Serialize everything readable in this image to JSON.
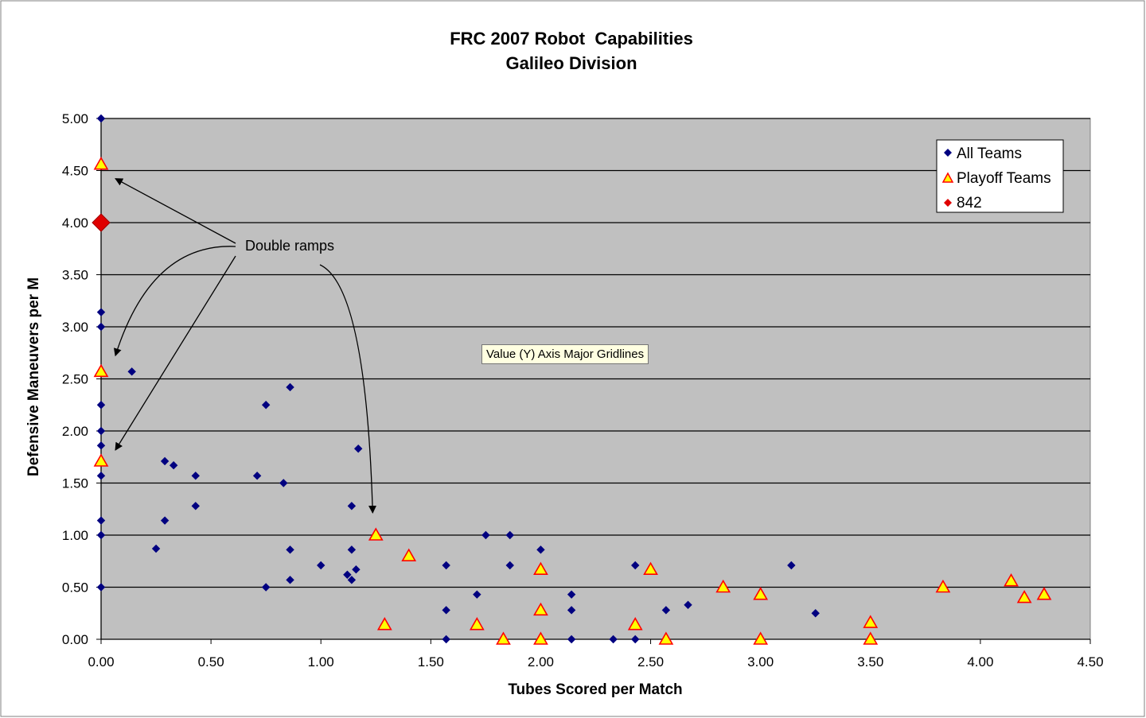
{
  "chart_data": {
    "type": "scatter",
    "title": "FRC 2007 Robot  Capabilities",
    "subtitle": "Galileo Division",
    "xlabel": "Tubes Scored per Match",
    "ylabel": "Defensive Maneuvers per M",
    "xlim": [
      0,
      4.5
    ],
    "ylim": [
      0,
      5
    ],
    "xticks": [
      "0.00",
      "0.50",
      "1.00",
      "1.50",
      "2.00",
      "2.50",
      "3.00",
      "3.50",
      "4.00",
      "4.50"
    ],
    "yticks": [
      "0.00",
      "0.50",
      "1.00",
      "1.50",
      "2.00",
      "2.50",
      "3.00",
      "3.50",
      "4.00",
      "4.50",
      "5.00"
    ],
    "grid": "horizontal major gridlines",
    "legend_position": "top-right",
    "plot_background": "#c0c0c0",
    "series": [
      {
        "name": "All Teams",
        "marker": "diamond",
        "color": "#000080",
        "points": [
          [
            0,
            5.0
          ],
          [
            0,
            3.14
          ],
          [
            0,
            3.0
          ],
          [
            0,
            2.25
          ],
          [
            0,
            2.0
          ],
          [
            0,
            1.86
          ],
          [
            0,
            1.57
          ],
          [
            0,
            1.14
          ],
          [
            0,
            1.0
          ],
          [
            0,
            0.5
          ],
          [
            0.14,
            2.57
          ],
          [
            0.25,
            0.87
          ],
          [
            0.29,
            1.71
          ],
          [
            0.29,
            1.14
          ],
          [
            0.33,
            1.67
          ],
          [
            0.43,
            1.57
          ],
          [
            0.43,
            1.28
          ],
          [
            0.71,
            1.57
          ],
          [
            0.75,
            2.25
          ],
          [
            0.75,
            0.5
          ],
          [
            0.83,
            1.5
          ],
          [
            0.86,
            2.42
          ],
          [
            0.86,
            0.86
          ],
          [
            0.86,
            0.57
          ],
          [
            1.0,
            0.71
          ],
          [
            1.12,
            0.62
          ],
          [
            1.14,
            1.28
          ],
          [
            1.14,
            0.86
          ],
          [
            1.14,
            0.57
          ],
          [
            1.16,
            0.67
          ],
          [
            1.17,
            1.83
          ],
          [
            1.57,
            0.71
          ],
          [
            1.57,
            0.28
          ],
          [
            1.57,
            0.0
          ],
          [
            1.71,
            0.43
          ],
          [
            1.75,
            1.0
          ],
          [
            1.86,
            1.0
          ],
          [
            1.86,
            0.71
          ],
          [
            2.0,
            0.86
          ],
          [
            2.14,
            0.43
          ],
          [
            2.14,
            0.28
          ],
          [
            2.14,
            0.0
          ],
          [
            2.33,
            0.0
          ],
          [
            2.43,
            0.71
          ],
          [
            2.43,
            0.0
          ],
          [
            2.57,
            0.28
          ],
          [
            2.67,
            0.33
          ],
          [
            3.14,
            0.71
          ],
          [
            3.25,
            0.25
          ]
        ]
      },
      {
        "name": "Playoff Teams",
        "marker": "triangle",
        "color": "#ffff00",
        "edge_color": "#ff0000",
        "points": [
          [
            0,
            4.56
          ],
          [
            0,
            2.57
          ],
          [
            0,
            1.71
          ],
          [
            1.25,
            1.0
          ],
          [
            1.29,
            0.14
          ],
          [
            1.4,
            0.8
          ],
          [
            1.71,
            0.14
          ],
          [
            1.83,
            0.0
          ],
          [
            2.0,
            0.67
          ],
          [
            2.0,
            0.28
          ],
          [
            2.0,
            0.0
          ],
          [
            2.43,
            0.14
          ],
          [
            2.5,
            0.67
          ],
          [
            2.57,
            0.0
          ],
          [
            2.83,
            0.5
          ],
          [
            3.0,
            0.43
          ],
          [
            3.0,
            0.0
          ],
          [
            3.5,
            0.16
          ],
          [
            3.5,
            0.0
          ],
          [
            3.83,
            0.5
          ],
          [
            4.14,
            0.56
          ],
          [
            4.2,
            0.4
          ],
          [
            4.29,
            0.43
          ]
        ]
      },
      {
        "name": "842",
        "marker": "diamond",
        "color": "#e00000",
        "points": [
          [
            0,
            4.0
          ]
        ]
      }
    ],
    "annotations": [
      {
        "text": "Double ramps",
        "arrow_targets": [
          [
            0,
            4.56
          ],
          [
            0,
            2.57
          ],
          [
            0,
            1.71
          ],
          [
            1.25,
            1.0
          ]
        ]
      }
    ]
  },
  "tooltip": {
    "text": "Value (Y) Axis Major Gridlines"
  }
}
